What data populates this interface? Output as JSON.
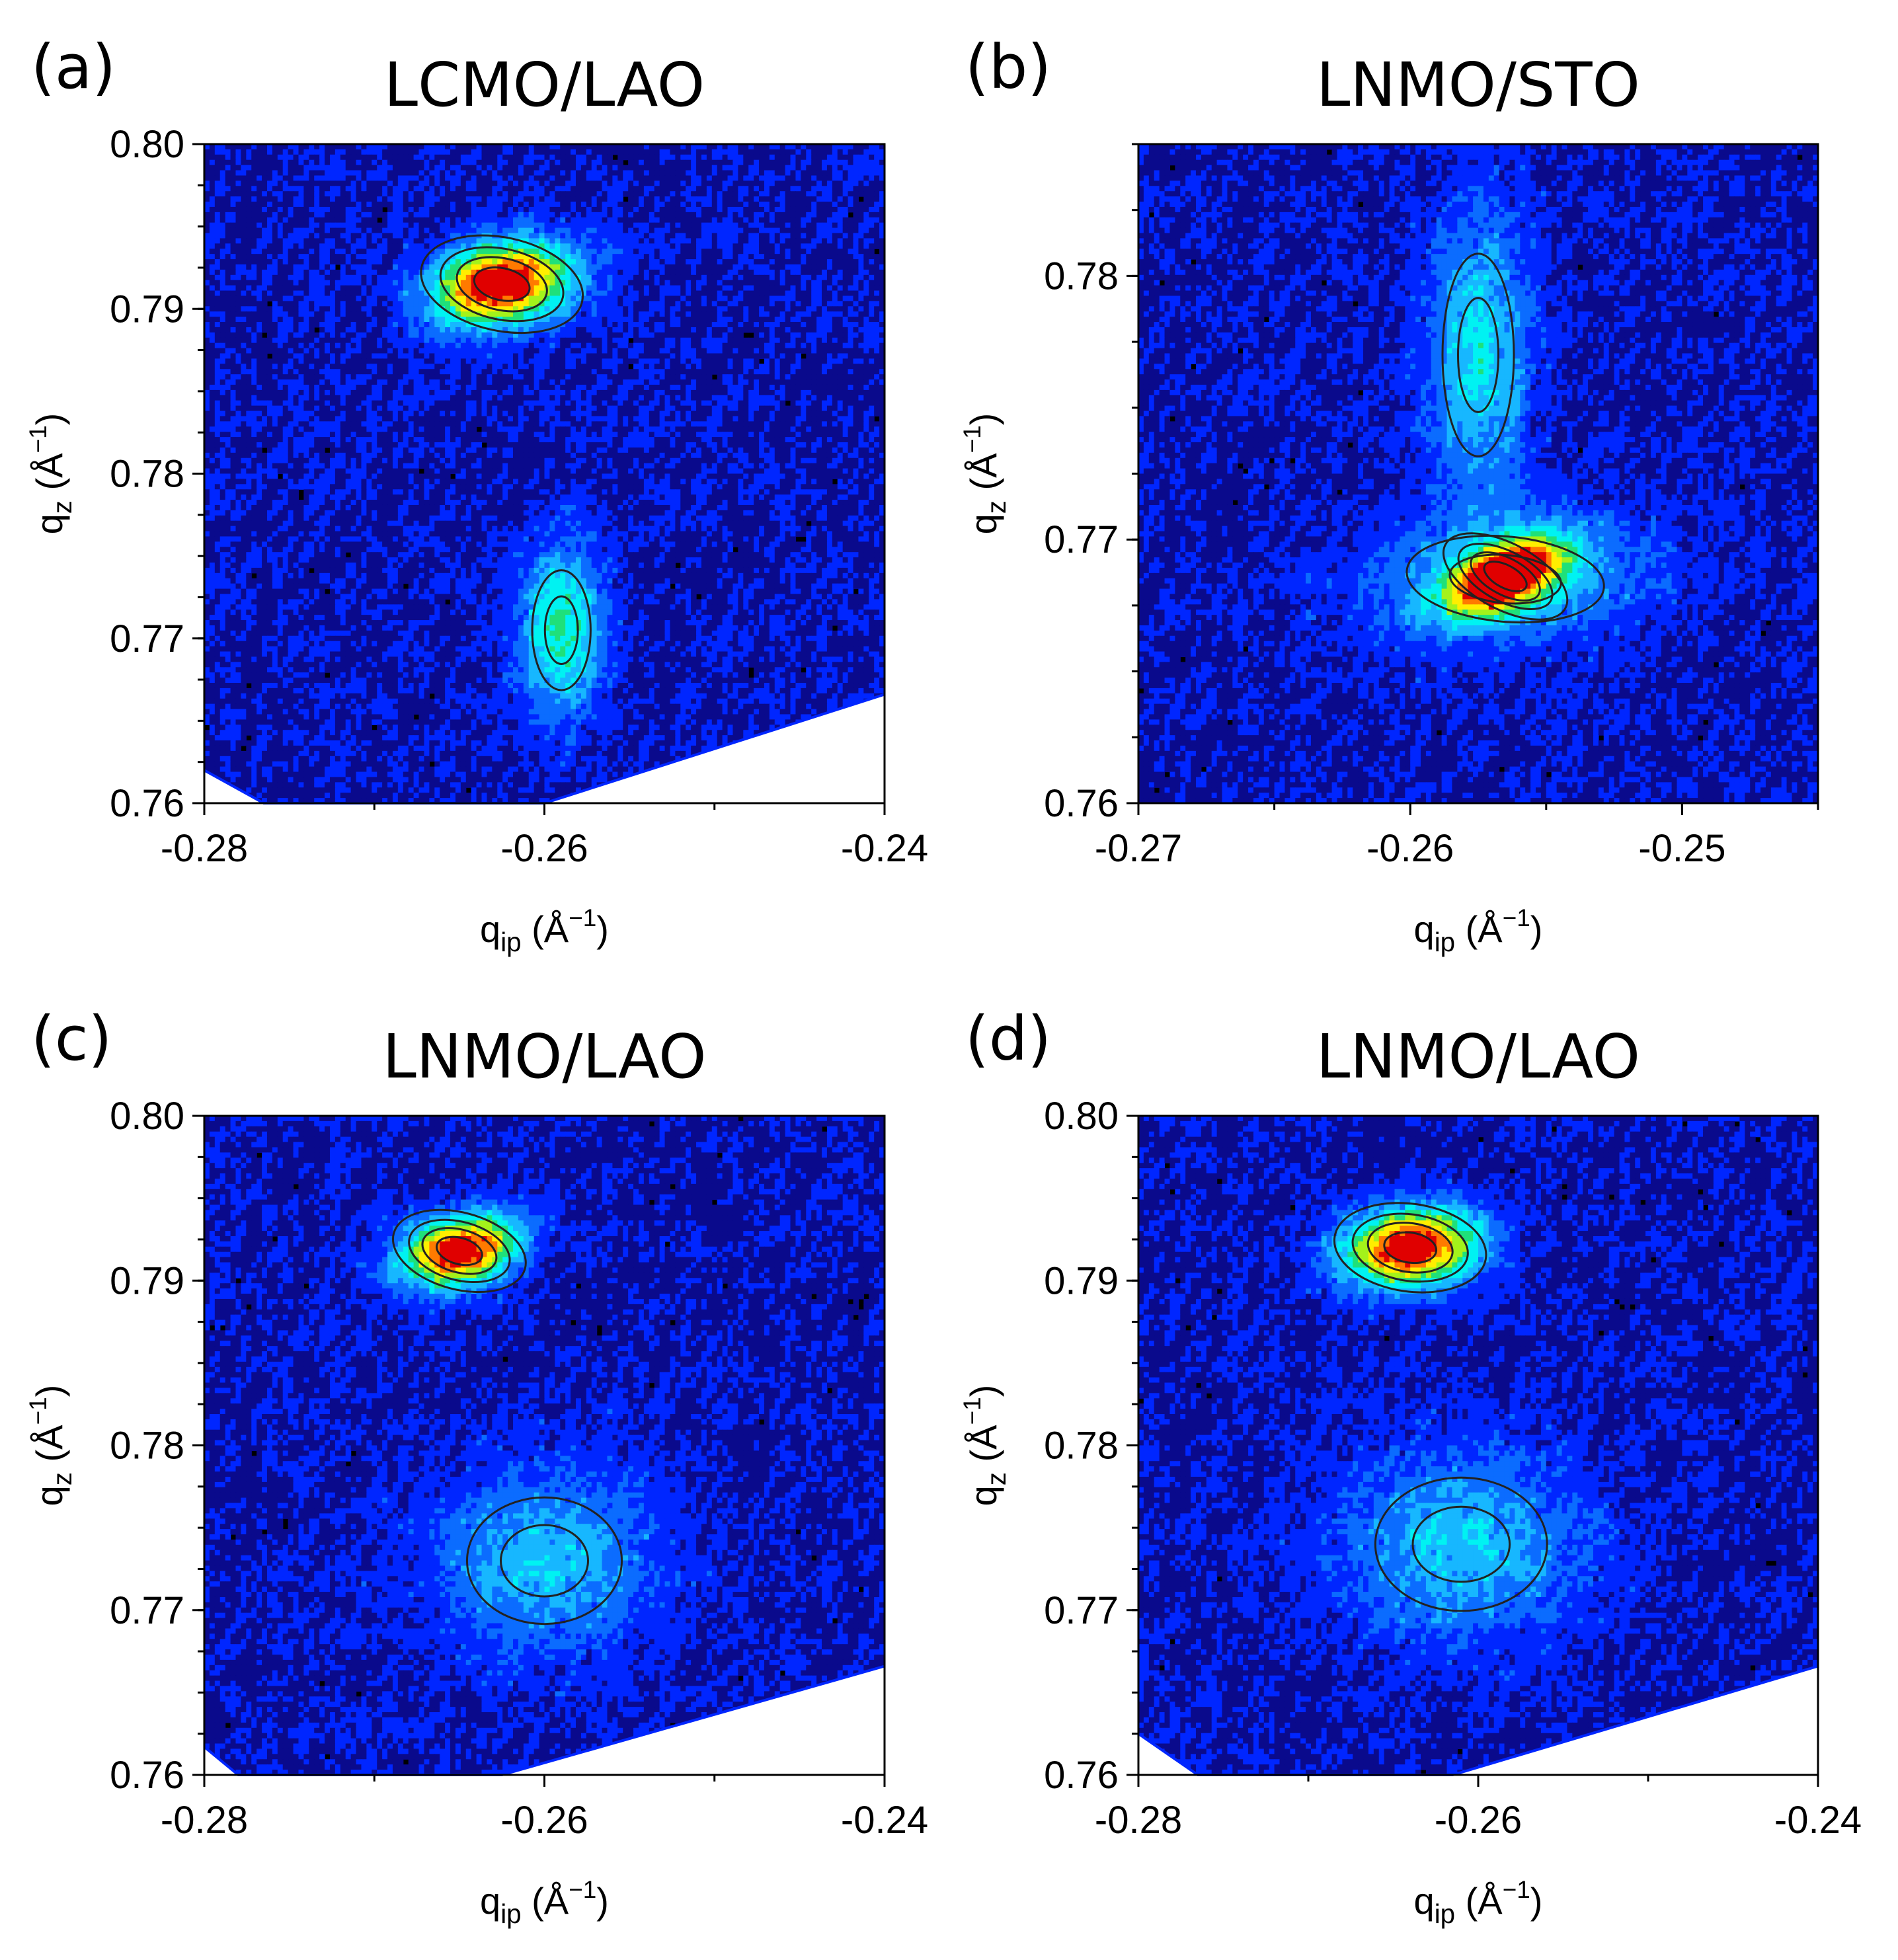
{
  "colors": {
    "colormap": [
      "#000000",
      "#0a0a8c",
      "#0026ff",
      "#0b6cff",
      "#17b7ff",
      "#00f2f2",
      "#1fe07a",
      "#a4f21b",
      "#ffee00",
      "#ff7a00",
      "#e00000"
    ],
    "contour": "#222222",
    "frame": "#000000"
  },
  "chart_data": [
    {
      "type": "heatmap",
      "panel_label": "(a)",
      "title": "LCMO/LAO",
      "xlabel": {
        "main": "q",
        "sub": "ip",
        "unit_open": " (Å",
        "unit_sup": "−1",
        "unit_close": ")"
      },
      "ylabel": {
        "main": "q",
        "sub": "z",
        "unit_open": " (Å",
        "unit_sup": "−1",
        "unit_close": ")"
      },
      "xlim": [
        -0.28,
        -0.24
      ],
      "ylim": [
        0.76,
        0.8
      ],
      "x_ticks": [
        {
          "value": -0.28,
          "label": "-0.28"
        },
        {
          "value": -0.26,
          "label": "-0.26"
        },
        {
          "value": -0.24,
          "label": "-0.24"
        }
      ],
      "y_ticks": [
        {
          "value": 0.76,
          "label": "0.76"
        },
        {
          "value": 0.77,
          "label": "0.77"
        },
        {
          "value": 0.78,
          "label": "0.78"
        },
        {
          "value": 0.79,
          "label": "0.79"
        },
        {
          "value": 0.8,
          "label": "0.80"
        }
      ],
      "x_minor_step": 0.01,
      "y_minor_step": 0.0025,
      "peaks": [
        {
          "q_ip": -0.2625,
          "q_z": 0.7915,
          "sigma_ip": 0.0029,
          "sigma_z": 0.0017,
          "angle_deg": -12,
          "intensity": 1.0
        },
        {
          "q_ip": -0.259,
          "q_z": 0.7705,
          "sigma_ip": 0.0017,
          "sigma_z": 0.0036,
          "angle_deg": 0,
          "intensity": 0.45
        }
      ],
      "background_level": 0.14,
      "blank_region": [
        [
          -0.28,
          0.762
        ],
        [
          -0.2765,
          0.76
        ],
        [
          -0.26,
          0.76
        ],
        [
          -0.24,
          0.7666
        ]
      ]
    },
    {
      "type": "heatmap",
      "panel_label": "(b)",
      "title": "LNMO/STO",
      "xlabel": {
        "main": "q",
        "sub": "ip",
        "unit_open": " (Å",
        "unit_sup": "−1",
        "unit_close": ")"
      },
      "ylabel": {
        "main": "q",
        "sub": "z",
        "unit_open": " (Å",
        "unit_sup": "−1",
        "unit_close": ")"
      },
      "xlim": [
        -0.27,
        -0.245
      ],
      "ylim": [
        0.76,
        0.785
      ],
      "x_ticks": [
        {
          "value": -0.27,
          "label": "-0.27"
        },
        {
          "value": -0.26,
          "label": "-0.26"
        },
        {
          "value": -0.25,
          "label": "-0.25"
        }
      ],
      "y_ticks": [
        {
          "value": 0.76,
          "label": "0.76"
        },
        {
          "value": 0.77,
          "label": "0.77"
        },
        {
          "value": 0.78,
          "label": "0.78"
        }
      ],
      "x_minor_step": 0.005,
      "y_minor_step": 0.0025,
      "peaks": [
        {
          "q_ip": -0.2565,
          "q_z": 0.7686,
          "sigma_ip": 0.0015,
          "sigma_z": 0.00075,
          "angle_deg": -28,
          "intensity": 1.0
        },
        {
          "q_ip": -0.2565,
          "q_z": 0.7685,
          "sigma_ip": 0.0036,
          "sigma_z": 0.0016,
          "angle_deg": -5,
          "intensity": 0.32
        },
        {
          "q_ip": -0.2575,
          "q_z": 0.777,
          "sigma_ip": 0.0013,
          "sigma_z": 0.0038,
          "angle_deg": 0,
          "intensity": 0.36
        }
      ],
      "background_level": 0.14,
      "blank_region": []
    },
    {
      "type": "heatmap",
      "panel_label": "(c)",
      "title": "LNMO/LAO",
      "xlabel": {
        "main": "q",
        "sub": "ip",
        "unit_open": " (Å",
        "unit_sup": "−1",
        "unit_close": ")"
      },
      "ylabel": {
        "main": "q",
        "sub": "z",
        "unit_open": " (Å",
        "unit_sup": "−1",
        "unit_close": ")"
      },
      "xlim": [
        -0.28,
        -0.24
      ],
      "ylim": [
        0.76,
        0.8
      ],
      "x_ticks": [
        {
          "value": -0.28,
          "label": "-0.28"
        },
        {
          "value": -0.26,
          "label": "-0.26"
        },
        {
          "value": -0.24,
          "label": "-0.24"
        }
      ],
      "y_ticks": [
        {
          "value": 0.76,
          "label": "0.76"
        },
        {
          "value": 0.77,
          "label": "0.77"
        },
        {
          "value": 0.78,
          "label": "0.78"
        },
        {
          "value": 0.79,
          "label": "0.79"
        },
        {
          "value": 0.8,
          "label": "0.80"
        }
      ],
      "x_minor_step": 0.01,
      "y_minor_step": 0.0025,
      "peaks": [
        {
          "q_ip": -0.265,
          "q_z": 0.7918,
          "sigma_ip": 0.0024,
          "sigma_z": 0.0014,
          "angle_deg": -15,
          "intensity": 1.0
        },
        {
          "q_ip": -0.26,
          "q_z": 0.773,
          "sigma_ip": 0.0045,
          "sigma_z": 0.0038,
          "angle_deg": 0,
          "intensity": 0.3
        }
      ],
      "background_level": 0.14,
      "blank_region": [
        [
          -0.28,
          0.7617
        ],
        [
          -0.278,
          0.76
        ],
        [
          -0.2625,
          0.76
        ],
        [
          -0.24,
          0.7666
        ]
      ]
    },
    {
      "type": "heatmap",
      "panel_label": "(d)",
      "title": "LNMO/LAO",
      "xlabel": {
        "main": "q",
        "sub": "ip",
        "unit_open": " (Å",
        "unit_sup": "−1",
        "unit_close": ")"
      },
      "ylabel": {
        "main": "q",
        "sub": "z",
        "unit_open": " (Å",
        "unit_sup": "−1",
        "unit_close": ")"
      },
      "xlim": [
        -0.28,
        -0.24
      ],
      "ylim": [
        0.76,
        0.8
      ],
      "x_ticks": [
        {
          "value": -0.28,
          "label": "-0.28"
        },
        {
          "value": -0.26,
          "label": "-0.26"
        },
        {
          "value": -0.24,
          "label": "-0.24"
        }
      ],
      "y_ticks": [
        {
          "value": 0.76,
          "label": "0.76"
        },
        {
          "value": 0.77,
          "label": "0.77"
        },
        {
          "value": 0.78,
          "label": "0.78"
        },
        {
          "value": 0.79,
          "label": "0.79"
        },
        {
          "value": 0.8,
          "label": "0.80"
        }
      ],
      "x_minor_step": 0.01,
      "y_minor_step": 0.0025,
      "peaks": [
        {
          "q_ip": -0.264,
          "q_z": 0.792,
          "sigma_ip": 0.0027,
          "sigma_z": 0.0016,
          "angle_deg": -8,
          "intensity": 1.0
        },
        {
          "q_ip": -0.261,
          "q_z": 0.774,
          "sigma_ip": 0.005,
          "sigma_z": 0.004,
          "angle_deg": 0,
          "intensity": 0.3
        }
      ],
      "background_level": 0.14,
      "blank_region": [
        [
          -0.28,
          0.7625
        ],
        [
          -0.2765,
          0.76
        ],
        [
          -0.2615,
          0.76
        ],
        [
          -0.24,
          0.7666
        ]
      ]
    }
  ]
}
